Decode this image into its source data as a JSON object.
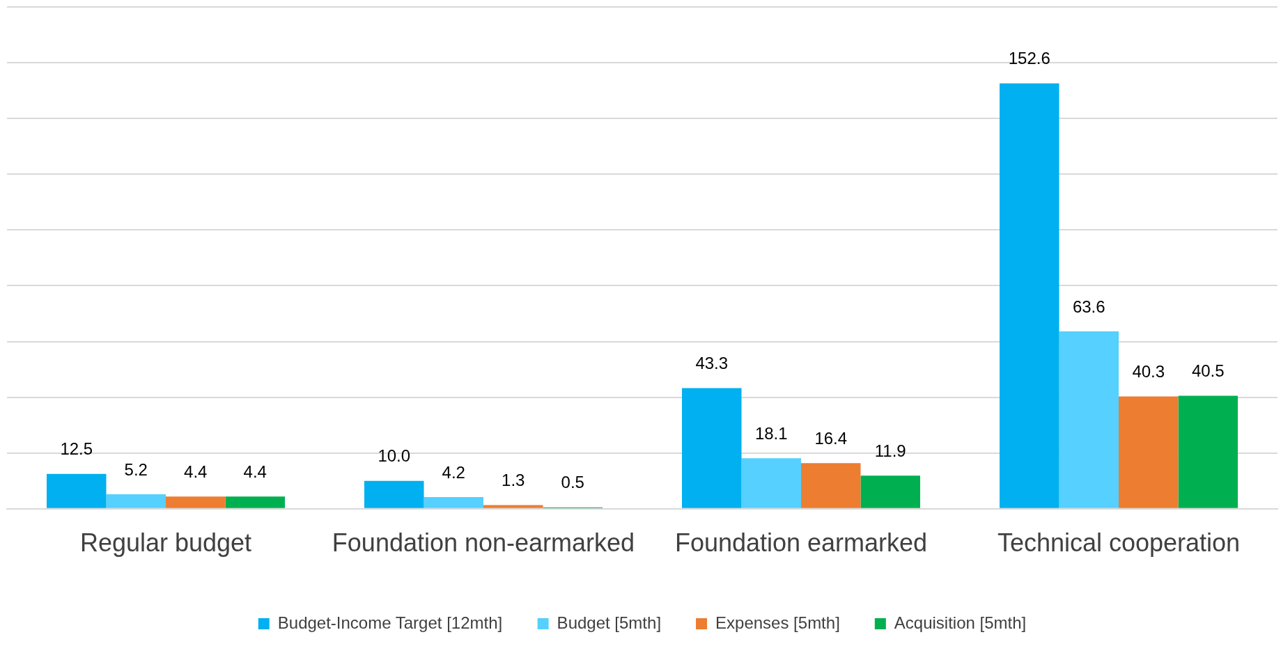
{
  "chart_data": {
    "type": "bar",
    "categories": [
      "Regular budget",
      "Foundation non-earmarked",
      "Foundation earmarked",
      "Technical cooperation"
    ],
    "series": [
      {
        "name": "Budget-Income Target [12mth]",
        "color": "#00b0f0",
        "values": [
          12.5,
          10.0,
          43.3,
          152.6
        ],
        "value_labels": [
          "12.5",
          "10.0",
          "43.3",
          "152.6"
        ]
      },
      {
        "name": "Budget [5mth]",
        "color": "#55d0ff",
        "values": [
          5.2,
          4.2,
          18.1,
          63.6
        ],
        "value_labels": [
          "5.2",
          "4.2",
          "18.1",
          "63.6"
        ]
      },
      {
        "name": "Expenses [5mth]",
        "color": "#ed7d31",
        "values": [
          4.4,
          1.3,
          16.4,
          40.3
        ],
        "value_labels": [
          "4.4",
          "1.3",
          "16.4",
          "40.3"
        ]
      },
      {
        "name": "Acquisition [5mth]",
        "color": "#00b050",
        "values": [
          4.4,
          0.5,
          11.9,
          40.5
        ],
        "value_labels": [
          "4.4",
          "0.5",
          "11.9",
          "40.5"
        ]
      }
    ],
    "ylim": [
      0,
      180
    ],
    "yticks": [
      0,
      20,
      40,
      60,
      80,
      100,
      120,
      140,
      160,
      180
    ],
    "tick_labels": "x",
    "grid": "y",
    "legend": "bottom"
  }
}
